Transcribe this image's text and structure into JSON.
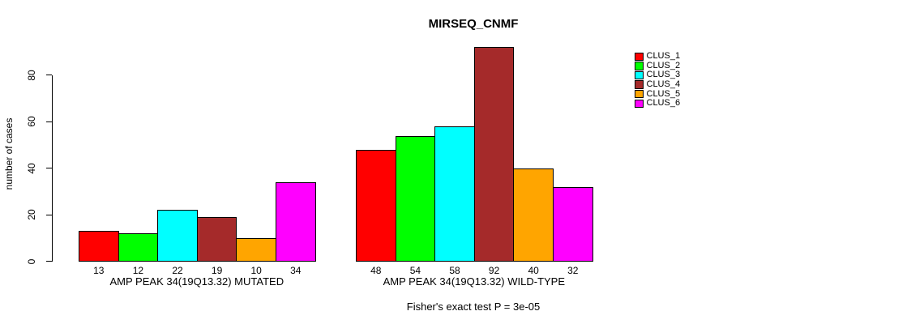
{
  "chart_data": {
    "type": "bar",
    "title": "MIRSEQ_CNMF",
    "ylabel": "number of cases",
    "xlabel": "",
    "footnote": "Fisher's exact test P = 3e-05",
    "yticks": [
      0,
      20,
      40,
      60,
      80
    ],
    "ylim": [
      0,
      92
    ],
    "grid": false,
    "legend_position": "top-right",
    "categories": [
      "AMP PEAK 34(19Q13.32) MUTATED",
      "AMP PEAK 34(19Q13.32) WILD-TYPE"
    ],
    "series": [
      {
        "name": "CLUS_1",
        "color": "#FF0000",
        "values": [
          13,
          48
        ]
      },
      {
        "name": "CLUS_2",
        "color": "#00FF00",
        "values": [
          12,
          54
        ]
      },
      {
        "name": "CLUS_3",
        "color": "#00FFFF",
        "values": [
          22,
          58
        ]
      },
      {
        "name": "CLUS_4",
        "color": "#A52A2A",
        "values": [
          19,
          92
        ]
      },
      {
        "name": "CLUS_5",
        "color": "#FFA500",
        "values": [
          10,
          40
        ]
      },
      {
        "name": "CLUS_6",
        "color": "#FF00FF",
        "values": [
          34,
          32
        ]
      }
    ]
  }
}
